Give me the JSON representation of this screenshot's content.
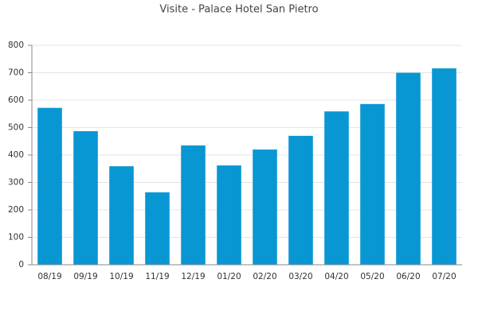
{
  "chart_data": {
    "type": "bar",
    "title": "Visite - Palace Hotel San Pietro",
    "categories": [
      "08/19",
      "09/19",
      "10/19",
      "11/19",
      "12/19",
      "01/20",
      "02/20",
      "03/20",
      "04/20",
      "05/20",
      "06/20",
      "07/20"
    ],
    "values": [
      572,
      487,
      359,
      264,
      435,
      362,
      420,
      470,
      559,
      586,
      700,
      716
    ],
    "color": "#0997d4",
    "ylim": [
      0,
      800
    ],
    "yticks": [
      0,
      100,
      200,
      300,
      400,
      500,
      600,
      700,
      800
    ],
    "grid": true
  }
}
